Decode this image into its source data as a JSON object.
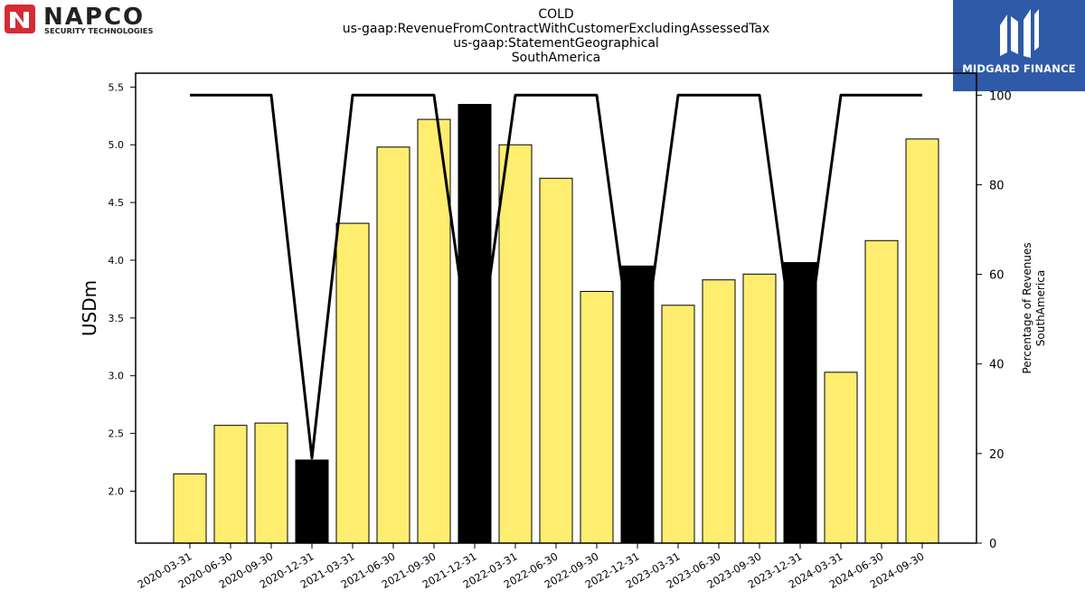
{
  "header": {
    "logo_left": {
      "name": "NAPCO",
      "tagline": "SECURITY TECHNOLOGIES",
      "accent": "#d52b35"
    },
    "logo_right": {
      "name": "MIDGARD FINANCE",
      "background": "#2e5aa8"
    },
    "title_lines": [
      "COLD",
      "us-gaap:RevenueFromContractWithCustomerExcludingAssessedTax",
      "us-gaap:StatementGeographical",
      "SouthAmerica"
    ]
  },
  "chart_data": {
    "type": "bar",
    "categories": [
      "2020-03-31",
      "2020-06-30",
      "2020-09-30",
      "2020-12-31",
      "2021-03-31",
      "2021-06-30",
      "2021-09-30",
      "2021-12-31",
      "2022-03-31",
      "2022-06-30",
      "2022-09-30",
      "2022-12-31",
      "2023-03-31",
      "2023-06-30",
      "2023-09-30",
      "2023-12-31",
      "2024-03-31",
      "2024-06-30",
      "2024-09-30"
    ],
    "series": [
      {
        "type": "bar",
        "axis": "left",
        "values": [
          2.15,
          2.57,
          2.59,
          2.27,
          4.32,
          4.98,
          5.22,
          5.35,
          5.0,
          4.71,
          3.73,
          3.95,
          3.61,
          3.83,
          3.88,
          3.98,
          3.03,
          4.17,
          5.05
        ],
        "bar_colors": [
          "#ffed6f",
          "#ffed6f",
          "#ffed6f",
          "#000000",
          "#ffed6f",
          "#ffed6f",
          "#ffed6f",
          "#000000",
          "#ffed6f",
          "#ffed6f",
          "#ffed6f",
          "#000000",
          "#ffed6f",
          "#ffed6f",
          "#ffed6f",
          "#000000",
          "#ffed6f",
          "#ffed6f",
          "#ffed6f"
        ]
      },
      {
        "type": "line",
        "axis": "right",
        "color": "#000000",
        "values": [
          100,
          100,
          100,
          19,
          100,
          100,
          100,
          35,
          100,
          100,
          100,
          33,
          100,
          100,
          100,
          33,
          100,
          100,
          100
        ]
      }
    ],
    "ylabel": "USDm",
    "ylabel_right": [
      "Percentage of Revenues",
      "SouthAmerica"
    ],
    "ylim": [
      1.55,
      5.62
    ],
    "ylim_right": [
      0,
      104.9
    ],
    "yticks": [
      2.0,
      2.5,
      3.0,
      3.5,
      4.0,
      4.5,
      5.0,
      5.5
    ],
    "yticks_right": [
      0,
      20,
      40,
      60,
      80,
      100
    ],
    "grid": false,
    "legend": "none"
  }
}
